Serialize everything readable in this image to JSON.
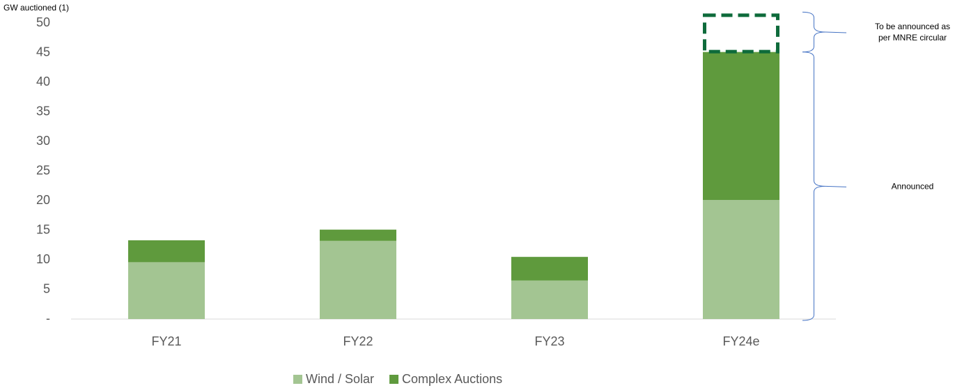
{
  "chart_data": {
    "type": "stacked_bar",
    "y_axis_label": "GW auctioned (1)",
    "categories": [
      "FY21",
      "FY22",
      "FY23",
      "FY24e"
    ],
    "series": [
      {
        "name": "Wind / Solar",
        "color": "#a3c592",
        "values": [
          9.6,
          13.2,
          6.5,
          20.1
        ]
      },
      {
        "name": "Complex Auctions",
        "color": "#5f9a3d",
        "values": [
          3.7,
          1.9,
          4.0,
          25.0
        ]
      }
    ],
    "pending": {
      "values": [
        null,
        null,
        null,
        6.5
      ],
      "color": "#0e6b3b",
      "style": "dashed",
      "annotation": [
        "To be announced as",
        "per MNRE circular"
      ]
    },
    "announced_annotation": "Announced",
    "annotation_color": "#4472c4",
    "ylim": [
      0,
      50
    ],
    "yticks": [
      {
        "value": 0,
        "label": "-"
      },
      5,
      10,
      15,
      20,
      25,
      30,
      35,
      40,
      45,
      50
    ],
    "grid": false,
    "legend": "bottom"
  }
}
